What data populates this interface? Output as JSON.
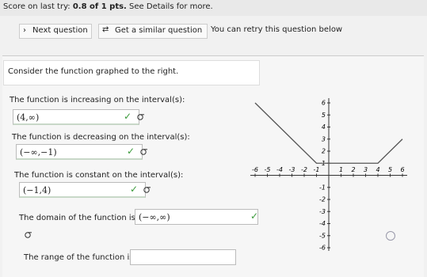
{
  "header": {
    "score_label": "Score on last try:",
    "score_value": "0.8 of 1 pts.",
    "details": "See Details for more."
  },
  "toolbar": {
    "next": "Next question",
    "similar": "Get a similar question",
    "retry": "You can retry this question below"
  },
  "prompt": "Consider the function graphed to the right.",
  "questions": [
    {
      "label": "The function is increasing on the interval(s):",
      "answer": "(4,∞)"
    },
    {
      "label": "The function is decreasing on the interval(s):",
      "answer": "(−∞,−1)"
    },
    {
      "label": "The function is constant on the interval(s):",
      "answer": "(−1,4)"
    },
    {
      "label": "The domain of the function is:",
      "answer": "(−∞,∞)"
    },
    {
      "label": "The range of the function is:"
    }
  ],
  "graph": {
    "xlim": [
      -6,
      6
    ],
    "ylim": [
      -6,
      6
    ],
    "xticks": [
      -6,
      -5,
      -4,
      -3,
      -2,
      -1,
      1,
      2,
      3,
      4,
      5,
      6
    ],
    "yticks": [
      -6,
      -5,
      -4,
      -3,
      -2,
      -1,
      1,
      2,
      3,
      4,
      5,
      6
    ],
    "x": [
      -6,
      -1,
      4,
      6
    ],
    "y": [
      6,
      1,
      1,
      3
    ]
  }
}
